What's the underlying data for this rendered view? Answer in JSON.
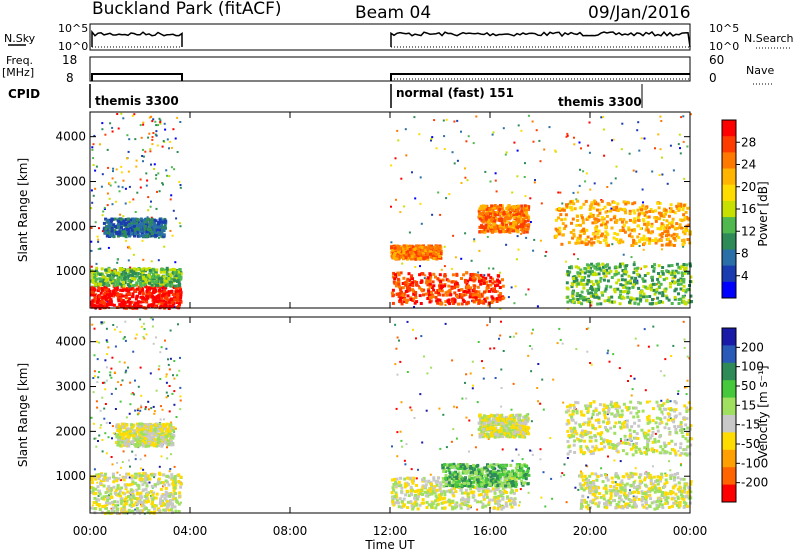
{
  "header": {
    "station": "Buckland Park (fitACF)",
    "beam": "Beam 04",
    "date": "09/Jan/2016"
  },
  "panels": {
    "nsky_label": "N.Sky",
    "nsky_ticks": [
      "10^5",
      "10^0"
    ],
    "nsearch_label": "N.Search",
    "freq_label": "Freq.",
    "freq_units": "[MHz]",
    "freq_ticks": [
      "18",
      "8"
    ],
    "nave_ticks": [
      "60",
      "0"
    ],
    "nave_label": "Nave",
    "cpid_label": "CPID",
    "cpid_segments": [
      "themis 3300",
      "normal (fast) 151",
      "themis 3300"
    ]
  },
  "colorbars": {
    "power": {
      "label": "Power [dB]",
      "ticks": [
        "28",
        "24",
        "20",
        "16",
        "12",
        "8",
        "4"
      ],
      "colors": [
        "#ff0000",
        "#ff3c00",
        "#ff7800",
        "#ffb400",
        "#ffdc00",
        "#c8e000",
        "#4fb84f",
        "#2e8b57",
        "#2a6fa8",
        "#1a3cb0",
        "#0000ff"
      ]
    },
    "velocity": {
      "label": "Velocity [m s⁻¹]",
      "ticks": [
        "200",
        "100",
        "50",
        "15",
        "-15",
        "-50",
        "-100",
        "-200"
      ],
      "colors": [
        "#1a1aa8",
        "#2a5ab8",
        "#2e8b57",
        "#46c83c",
        "#a0e060",
        "#c8c8c8",
        "#ffdc00",
        "#ffa000",
        "#ff6400",
        "#ff0000"
      ]
    }
  },
  "chart_data": [
    {
      "type": "heatmap",
      "name": "power",
      "ylabel": "Slant Range [km]",
      "yticks": [
        1000,
        2000,
        3000,
        4000
      ],
      "ylim": [
        180,
        4550
      ],
      "xlim": [
        0,
        24
      ],
      "regions": [
        {
          "t0": 0.0,
          "t1": 3.6,
          "r0": 200,
          "r1": 700,
          "level": 0
        },
        {
          "t0": 0.0,
          "t1": 3.6,
          "r0": 700,
          "r1": 1100,
          "level": 6
        },
        {
          "t0": 0.5,
          "t1": 3.0,
          "r0": 1800,
          "r1": 2200,
          "level": 8
        },
        {
          "t0": 12.0,
          "t1": 16.5,
          "r0": 300,
          "r1": 1000,
          "level": 1
        },
        {
          "t0": 12.0,
          "t1": 14.0,
          "r0": 1300,
          "r1": 1600,
          "level": 2
        },
        {
          "t0": 15.5,
          "t1": 17.5,
          "r0": 1900,
          "r1": 2500,
          "level": 2
        },
        {
          "t0": 18.5,
          "t1": 24.0,
          "r0": 1600,
          "r1": 2600,
          "level": 3
        },
        {
          "t0": 19.0,
          "t1": 24.0,
          "r0": 300,
          "r1": 1200,
          "level": 6
        }
      ]
    },
    {
      "type": "heatmap",
      "name": "velocity",
      "ylabel": "Slant Range [km]",
      "yticks": [
        1000,
        2000,
        3000,
        4000
      ],
      "ylim": [
        180,
        4550
      ],
      "xlim": [
        0,
        24
      ],
      "xticks": [
        "00:00",
        "04:00",
        "08:00",
        "12:00",
        "16:00",
        "20:00",
        "00:00"
      ],
      "xlabel": "Time UT",
      "regions": [
        {
          "t0": 0.0,
          "t1": 3.6,
          "r0": 200,
          "r1": 1100,
          "level": 5
        },
        {
          "t0": 1.0,
          "t1": 3.3,
          "r0": 1700,
          "r1": 2200,
          "level": 5
        },
        {
          "t0": 12.0,
          "t1": 17.0,
          "r0": 300,
          "r1": 1000,
          "level": 5
        },
        {
          "t0": 14.0,
          "t1": 17.5,
          "r0": 800,
          "r1": 1300,
          "level": 3
        },
        {
          "t0": 15.5,
          "t1": 17.5,
          "r0": 1900,
          "r1": 2400,
          "level": 5
        },
        {
          "t0": 19.0,
          "t1": 24.0,
          "r0": 1500,
          "r1": 2700,
          "level": 5
        },
        {
          "t0": 19.5,
          "t1": 24.0,
          "r0": 300,
          "r1": 1100,
          "level": 5
        }
      ]
    }
  ]
}
